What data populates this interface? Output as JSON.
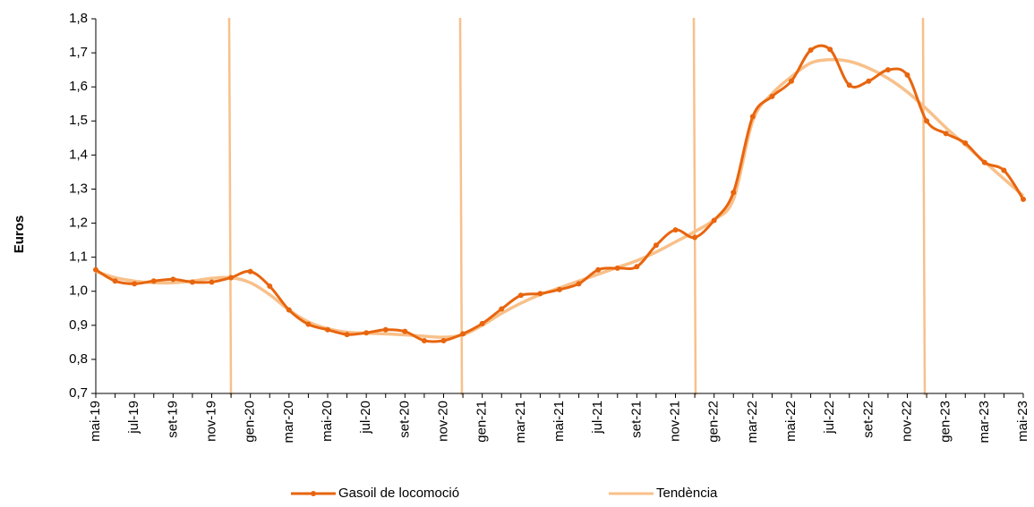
{
  "chart_data": {
    "type": "line",
    "y_label": "Euros",
    "categories": [
      "mai-19",
      null,
      "jul-19",
      null,
      "set-19",
      null,
      "nov-19",
      null,
      "gen-20",
      null,
      "mar-20",
      null,
      "mai-20",
      null,
      "jul-20",
      null,
      "set-20",
      null,
      "nov-20",
      null,
      "gen-21",
      null,
      "mar-21",
      null,
      "mai-21",
      null,
      "jul-21",
      null,
      "set-21",
      null,
      "nov-21",
      null,
      "gen-22",
      null,
      "mar-22",
      null,
      "mai-22",
      null,
      "jul-22",
      null,
      "set-22",
      null,
      "nov-22",
      null,
      "gen-23",
      null,
      "mar-23",
      null,
      "mai-23"
    ],
    "series": [
      {
        "name": "Gasoil de locomoció",
        "color": "#e8650e",
        "markers": true,
        "values": [
          1.063,
          1.03,
          1.022,
          1.03,
          1.035,
          1.027,
          1.027,
          1.04,
          1.058,
          1.015,
          0.945,
          0.903,
          0.887,
          0.873,
          0.878,
          0.887,
          0.882,
          0.855,
          0.855,
          0.875,
          0.905,
          0.948,
          0.988,
          0.993,
          1.005,
          1.022,
          1.063,
          1.068,
          1.072,
          1.135,
          1.18,
          1.158,
          1.208,
          1.29,
          1.513,
          1.572,
          1.617,
          1.708,
          1.71,
          1.605,
          1.617,
          1.65,
          1.635,
          1.5,
          1.463,
          1.435,
          1.378,
          1.355,
          1.27
        ]
      },
      {
        "name": "Tendència",
        "color": "#f8c08a",
        "markers": false,
        "values": [
          1.058,
          1.04,
          1.03,
          1.025,
          1.025,
          1.03,
          1.038,
          1.04,
          1.025,
          0.99,
          0.945,
          0.91,
          0.89,
          0.88,
          0.877,
          0.875,
          0.872,
          0.868,
          0.865,
          0.872,
          0.9,
          0.935,
          0.965,
          0.99,
          1.01,
          1.03,
          1.05,
          1.07,
          1.09,
          1.115,
          1.145,
          1.175,
          1.21,
          1.27,
          1.5,
          1.58,
          1.63,
          1.67,
          1.68,
          1.675,
          1.655,
          1.625,
          1.585,
          1.535,
          1.48,
          1.43,
          1.38,
          1.33,
          1.28
        ]
      }
    ],
    "ylim": [
      0.7,
      1.8
    ],
    "yticks": [
      {
        "value": 0.7,
        "label": "0,7"
      },
      {
        "value": 0.8,
        "label": "0,8"
      },
      {
        "value": 0.9,
        "label": "0,9"
      },
      {
        "value": 1.0,
        "label": "1,0"
      },
      {
        "value": 1.1,
        "label": "1,1"
      },
      {
        "value": 1.2,
        "label": "1,2"
      },
      {
        "value": 1.3,
        "label": "1,3"
      },
      {
        "value": 1.4,
        "label": "1,4"
      },
      {
        "value": 1.5,
        "label": "1,5"
      },
      {
        "value": 1.6,
        "label": "1,6"
      },
      {
        "value": 1.7,
        "label": "1,7"
      },
      {
        "value": 1.8,
        "label": "1,8"
      }
    ],
    "grid": false
  }
}
